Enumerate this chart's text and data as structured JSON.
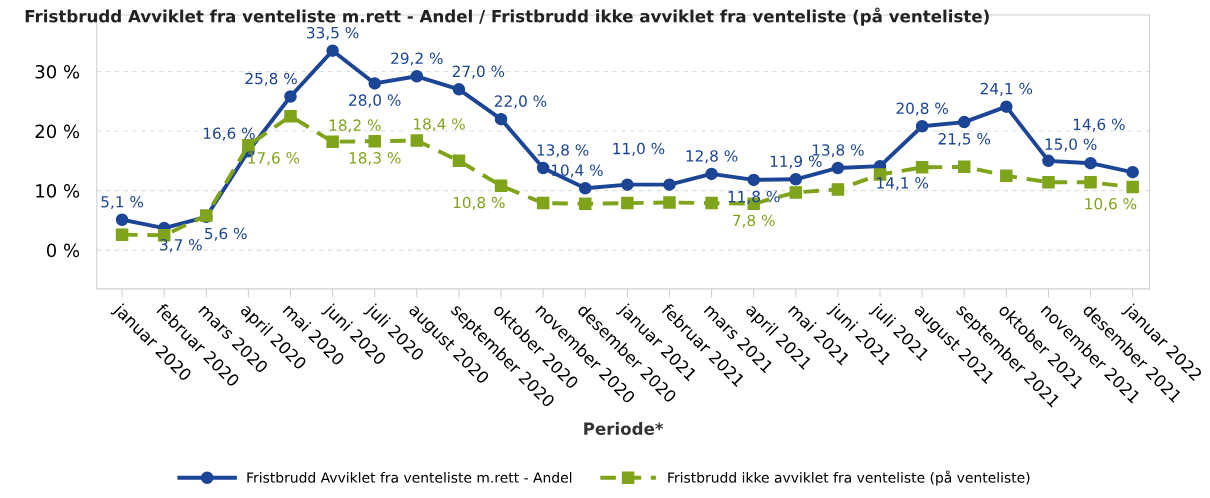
{
  "chart_data": {
    "type": "line",
    "title": "Fristbrudd Avviklet fra venteliste m.rett - Andel / Fristbrudd ikke avviklet fra venteliste (på venteliste)",
    "xlabel": "Periode*",
    "categories": [
      "januar 2020",
      "februar 2020",
      "mars 2020",
      "april 2020",
      "mai 2020",
      "juni 2020",
      "juli 2020",
      "august 2020",
      "september 2020",
      "oktober 2020",
      "november 2020",
      "desember 2020",
      "januar 2021",
      "februar 2021",
      "mars 2021",
      "april 2021",
      "mai 2021",
      "juni 2021",
      "juli 2021",
      "august 2021",
      "september 2021",
      "oktober 2021",
      "november 2021",
      "desember 2021",
      "januar 2022"
    ],
    "series": [
      {
        "name": "Fristbrudd Avviklet fra venteliste m.rett - Andel",
        "color": "#1d4596",
        "marker": "circle",
        "line_style": "solid",
        "values": [
          5.1,
          3.7,
          5.6,
          16.6,
          25.8,
          33.5,
          28.0,
          29.2,
          27.0,
          22.0,
          13.8,
          10.4,
          11.0,
          11.0,
          12.8,
          11.8,
          11.9,
          13.8,
          14.1,
          20.8,
          21.5,
          24.1,
          15.0,
          14.6,
          13.1
        ],
        "value_labels": [
          "5,1 %",
          "3,7 %",
          "5,6 %",
          "16,6 %",
          "25,8 %",
          "33,5 %",
          "28,0 %",
          "29,2 %",
          "27,0 %",
          "22,0 %",
          "13,8 %",
          "10,4 %",
          "11,0 %",
          null,
          "12,8 %",
          "11,8 %",
          "11,9 %",
          "13,8 %",
          "14,1 %",
          "20,8 %",
          "21,5 %",
          "24,1 %",
          "15,0 %",
          "14,6 %",
          null
        ]
      },
      {
        "name": "Fristbrudd ikke avviklet fra venteliste (på venteliste)",
        "color": "#7fa41b",
        "marker": "square",
        "line_style": "dashed",
        "values": [
          2.6,
          2.5,
          5.8,
          17.6,
          22.5,
          18.2,
          18.3,
          18.4,
          15.0,
          10.8,
          7.9,
          7.8,
          7.9,
          8.0,
          7.9,
          7.8,
          9.7,
          10.2,
          12.7,
          13.9,
          14.0,
          12.5,
          11.4,
          11.4,
          10.6
        ],
        "value_labels": [
          null,
          null,
          null,
          "17,6 %",
          null,
          "18,2 %",
          "18,3 %",
          "18,4 %",
          null,
          "10,8 %",
          null,
          null,
          null,
          null,
          null,
          "7,8 %",
          null,
          null,
          null,
          null,
          null,
          null,
          null,
          null,
          "10,6 %"
        ]
      }
    ],
    "ylim": [
      -6.5,
      39.5
    ],
    "yticks": [
      {
        "value": 0,
        "label": "0 %"
      },
      {
        "value": 10,
        "label": "10 %"
      },
      {
        "value": 20,
        "label": "20 %"
      },
      {
        "value": 30,
        "label": "30 %"
      }
    ],
    "grid": "y",
    "legend": "bottom"
  }
}
